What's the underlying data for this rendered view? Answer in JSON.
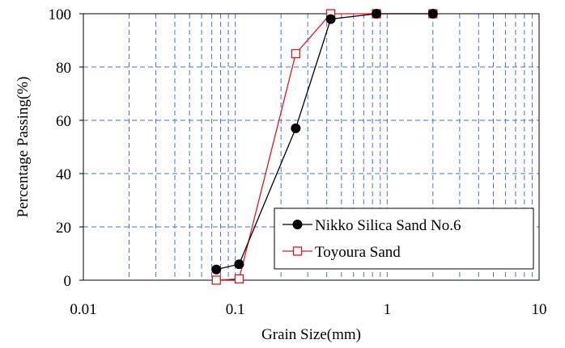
{
  "chart_data": {
    "type": "line",
    "xlabel": "Grain Size(mm)",
    "ylabel": "Percentage Passing(%)",
    "x_scale": "log",
    "xlim": [
      0.01,
      10
    ],
    "ylim": [
      0,
      100
    ],
    "x_ticks": [
      0.01,
      0.1,
      1,
      10
    ],
    "x_tick_labels": [
      "0.01",
      "0.1",
      "1",
      "10"
    ],
    "y_ticks": [
      0,
      20,
      40,
      60,
      80,
      100
    ],
    "y_tick_labels": [
      "0",
      "20",
      "40",
      "60",
      "80",
      "100"
    ],
    "grid": true,
    "legend_position": "bottom-right",
    "series": [
      {
        "name": "Nikko Silica Sand No.6",
        "color": "#000000",
        "marker": "filled-circle",
        "x": [
          0.075,
          0.106,
          0.25,
          0.425,
          0.85,
          2.0
        ],
        "y": [
          4,
          6,
          57,
          98,
          100,
          100
        ]
      },
      {
        "name": "Toyoura Sand",
        "color": "#e8141e",
        "marker": "open-square",
        "x": [
          0.075,
          0.106,
          0.25,
          0.425,
          0.85,
          2.0
        ],
        "y": [
          0,
          0.5,
          85,
          100,
          100,
          100
        ]
      }
    ]
  }
}
